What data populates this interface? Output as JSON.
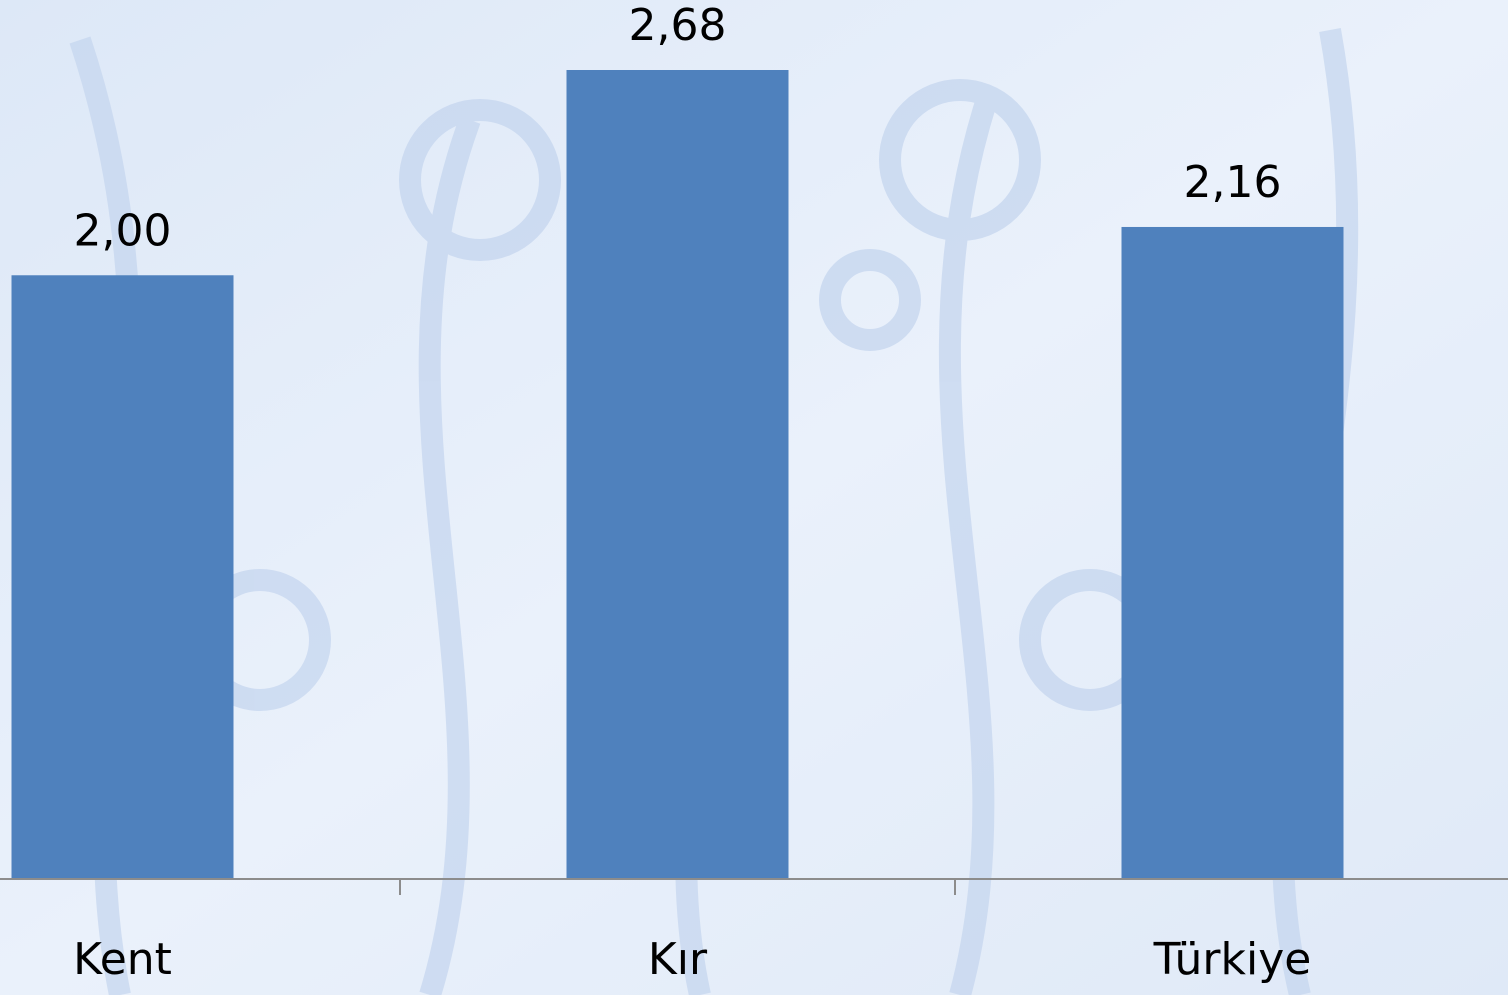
{
  "chart_data": {
    "type": "bar",
    "categories": [
      "Kent",
      "Kır",
      "Türkiye"
    ],
    "values": [
      2.0,
      2.68,
      2.16
    ],
    "value_labels": [
      "2,00",
      "2,68",
      "2,16"
    ],
    "color": "#4f81bd"
  }
}
